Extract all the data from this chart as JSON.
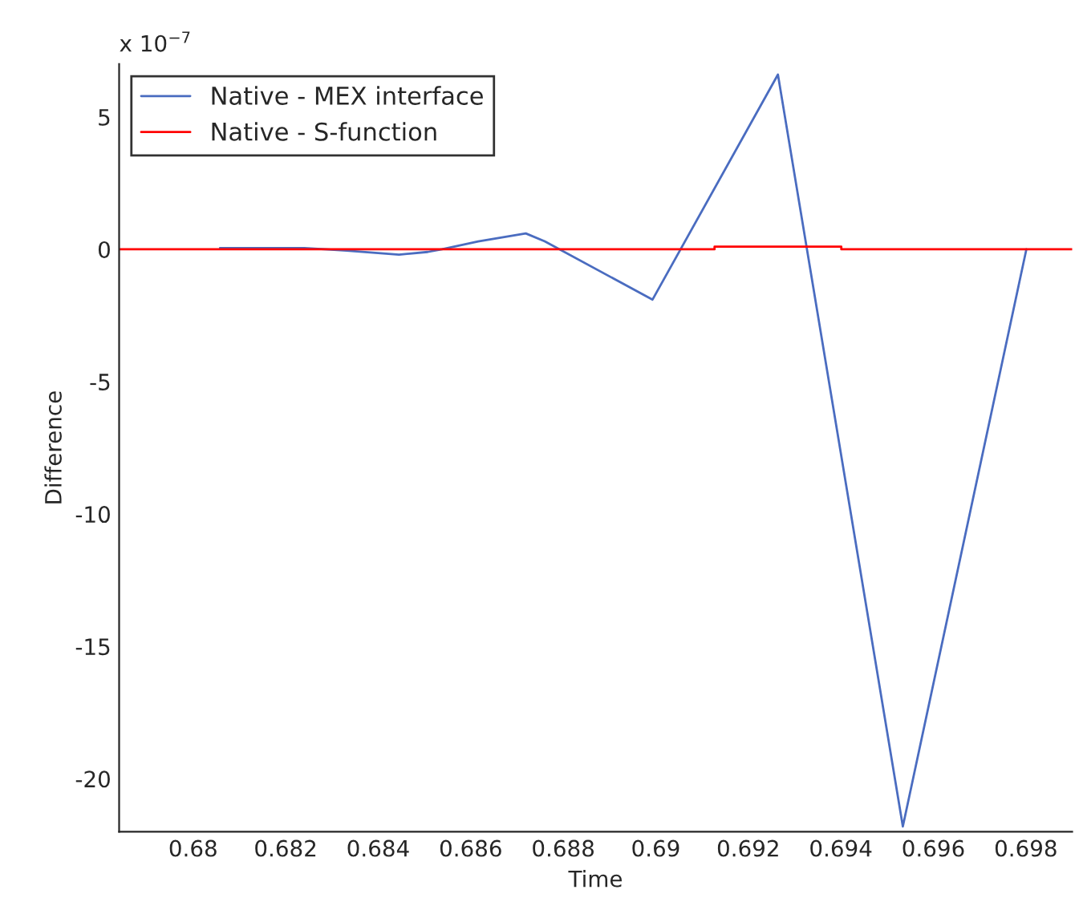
{
  "chart_data": {
    "type": "line",
    "xlabel": "Time",
    "ylabel": "Difference",
    "annotations": [
      "x 10$^{−7}$"
    ],
    "series": [
      {
        "name": "Native - MEX interface",
        "color": "#4a6cc0",
        "x": [
          0.68058,
          0.6824,
          0.68284,
          0.68332,
          0.68445,
          0.68507,
          0.68538,
          0.68616,
          0.68719,
          0.6876,
          0.68993,
          0.69264,
          0.69534,
          0.69801
        ],
        "values": [
          0.05,
          0.05,
          0,
          -0.05,
          -0.2,
          -0.1,
          0,
          0.3,
          0.6,
          0.3,
          -1.9,
          6.6,
          -21.8,
          0
        ]
      },
      {
        "name": "Native - S-function",
        "color": "#ff0000",
        "x": [
          0.6784,
          0.69127,
          0.69127,
          0.69401,
          0.69401,
          0.699
        ],
        "values": [
          0,
          0,
          0.1,
          0.1,
          0,
          0
        ]
      }
    ],
    "xlim": [
      0.6784,
      0.699
    ],
    "ylim": [
      -22,
      7
    ],
    "xticks": [
      0.68,
      0.682,
      0.684,
      0.686,
      0.688,
      0.69,
      0.692,
      0.694,
      0.696,
      0.698
    ],
    "yticks": [
      -20,
      -15,
      -10,
      -5,
      0,
      5
    ],
    "grid": false,
    "legend": "top left",
    "marker": "none",
    "line_style": "solid"
  }
}
